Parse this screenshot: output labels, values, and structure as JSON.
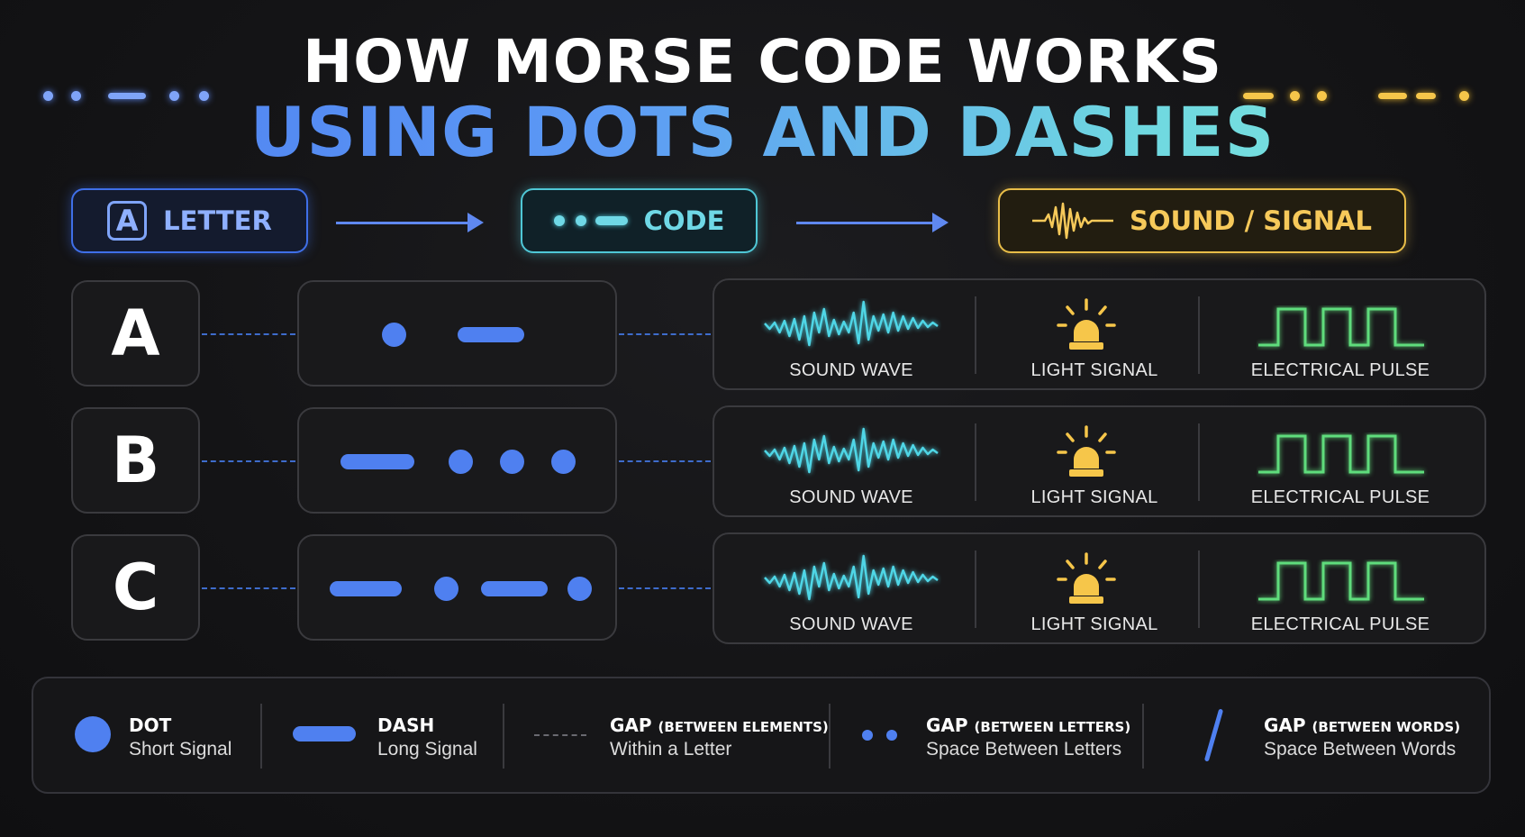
{
  "title": {
    "line1": "HOW MORSE CODE WORKS",
    "line2": "USING DOTS AND DASHES"
  },
  "flow": {
    "letter_icon": "A",
    "letter_label": "LETTER",
    "code_label": "CODE",
    "sound_label": "SOUND / SIGNAL"
  },
  "rows": [
    {
      "letter": "A",
      "code": ".-"
    },
    {
      "letter": "B",
      "code": "-..."
    },
    {
      "letter": "C",
      "code": "-.-."
    }
  ],
  "signals": {
    "sound_wave": "SOUND WAVE",
    "light_signal": "LIGHT SIGNAL",
    "electrical_pulse": "ELECTRICAL PULSE"
  },
  "legend": {
    "dot": {
      "title": "DOT",
      "sub": "Short Signal"
    },
    "dash": {
      "title": "DASH",
      "sub": "Long Signal"
    },
    "gap_elements": {
      "title": "GAP",
      "qualifier": "(BETWEEN ELEMENTS)",
      "sub": "Within a Letter"
    },
    "gap_letters": {
      "title": "GAP",
      "qualifier": "(BETWEEN LETTERS)",
      "sub": "Space Between Letters"
    },
    "gap_words": {
      "title": "GAP",
      "qualifier": "(BETWEEN WORDS)",
      "sub": "Space Between Words"
    }
  },
  "colors": {
    "dot_dash": "#4f80f0",
    "letter_accent": "#3f6fe8",
    "code_accent": "#4fc7d6",
    "sound_accent": "#e8bd48",
    "wave": "#4fd6e6",
    "light": "#f6c64a",
    "pulse": "#5fdc7c"
  },
  "icons": {
    "letter": "letter-a-icon",
    "code": "morse-code-icon",
    "sound": "sound-wave-icon",
    "light": "beacon-light-icon",
    "pulse": "square-pulse-icon"
  }
}
